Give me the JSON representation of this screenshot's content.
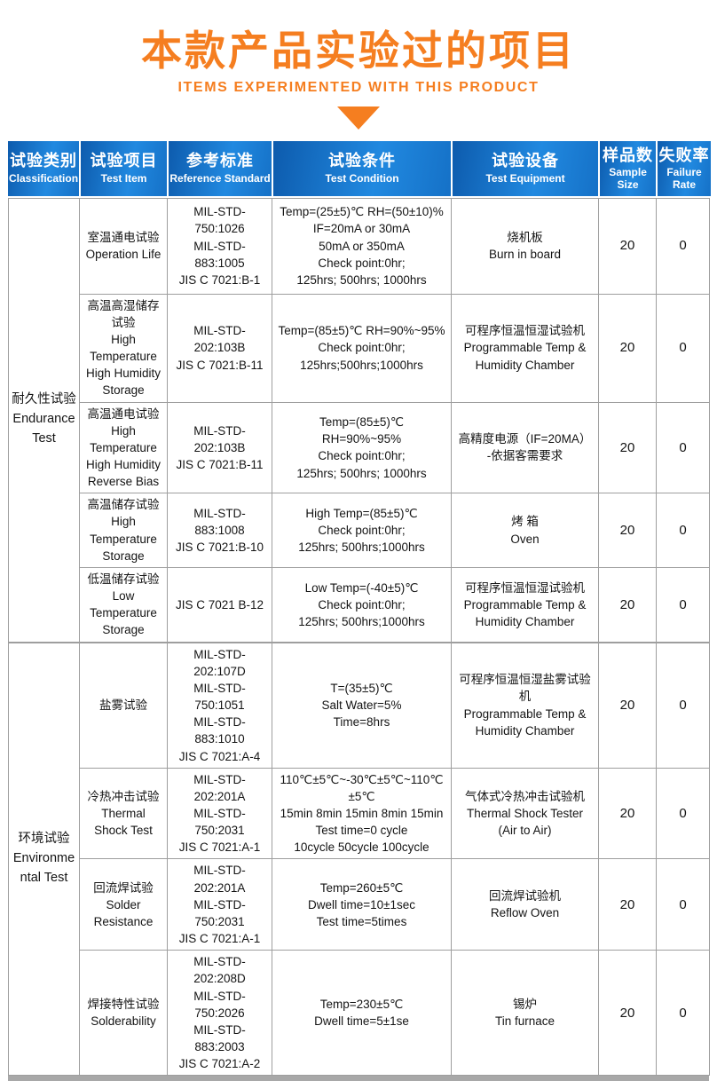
{
  "banner": {
    "title": "本款产品实验过的项目",
    "subtitle": "ITEMS EXPERIMENTED WITH THIS PRODUCT"
  },
  "colors": {
    "accent_orange": "#f57e20",
    "header_blue_dark": "#0d5bad",
    "header_blue_light": "#2189e0",
    "border_gray": "#9e9e9e",
    "bar_gray": "#a8a8a8"
  },
  "table": {
    "headers": [
      {
        "zh": "试验类别",
        "en": "Classification"
      },
      {
        "zh": "试验项目",
        "en": "Test Item"
      },
      {
        "zh": "参考标准",
        "en": "Reference Standard"
      },
      {
        "zh": "试验条件",
        "en": "Test Condition"
      },
      {
        "zh": "试验设备",
        "en": "Test Equipment"
      },
      {
        "zh": "样品数",
        "en": "Sample Size"
      },
      {
        "zh": "失败率",
        "en": "Failure Rate"
      }
    ],
    "groups": [
      {
        "classification": [
          "耐久性试验",
          "Endurance",
          "Test"
        ],
        "rows": [
          {
            "item": [
              "室温通电试验",
              "Operation Life"
            ],
            "standard": [
              "MIL-STD-750:1026",
              "MIL-STD-883:1005",
              "JIS C 7021:B-1"
            ],
            "condition": [
              "Temp=(25±5)℃ RH=(50±10)%",
              "IF=20mA or 30mA",
              "50mA or 350mA",
              "Check point:0hr;",
              "125hrs; 500hrs; 1000hrs"
            ],
            "equipment": [
              "烧机板",
              "Burn in board"
            ],
            "sample_size": "20",
            "failure_rate": "0"
          },
          {
            "item": [
              "高温高湿储存试验",
              "High Temperature",
              "High Humidity",
              "Storage"
            ],
            "standard": [
              "MIL-STD-202:103B",
              "JIS C 7021:B-11"
            ],
            "condition": [
              "Temp=(85±5)℃ RH=90%~95%",
              "Check point:0hr;",
              "125hrs;500hrs;1000hrs"
            ],
            "equipment": [
              "可程序恒温恒湿试验机",
              "Programmable Temp &",
              "Humidity Chamber"
            ],
            "sample_size": "20",
            "failure_rate": "0"
          },
          {
            "item": [
              "高温通电试验",
              "High Temperature",
              "High Humidity",
              "Reverse Bias"
            ],
            "standard": [
              "MIL-STD-202:103B",
              "JIS C 7021:B-11"
            ],
            "condition": [
              "Temp=(85±5)℃",
              "RH=90%~95%",
              "Check point:0hr;",
              "125hrs; 500hrs; 1000hrs"
            ],
            "equipment": [
              "高精度电源（IF=20MA）",
              "-依据客需要求"
            ],
            "sample_size": "20",
            "failure_rate": "0"
          },
          {
            "item": [
              "高温储存试验",
              "High Temperature",
              "Storage"
            ],
            "standard": [
              "MIL-STD-883:1008",
              "JIS C 7021:B-10"
            ],
            "condition": [
              "High Temp=(85±5)℃",
              "Check point:0hr;",
              "125hrs; 500hrs;1000hrs"
            ],
            "equipment": [
              "烤 箱",
              "Oven"
            ],
            "sample_size": "20",
            "failure_rate": "0"
          },
          {
            "item": [
              "低温储存试验",
              "Low Temperature",
              "Storage"
            ],
            "standard": [
              "JIS C 7021 B-12"
            ],
            "condition": [
              "Low Temp=(-40±5)℃",
              "Check point:0hr;",
              "125hrs; 500hrs;1000hrs"
            ],
            "equipment": [
              "可程序恒温恒湿试验机",
              "Programmable Temp &",
              "Humidity Chamber"
            ],
            "sample_size": "20",
            "failure_rate": "0"
          }
        ]
      },
      {
        "classification": [
          "环境试验",
          "Environme",
          "ntal Test"
        ],
        "rows": [
          {
            "item": [
              "盐雾试验"
            ],
            "standard": [
              "MIL-STD-202:107D",
              "MIL-STD-750:1051",
              "MIL-STD-883:1010",
              "JIS C 7021:A-4"
            ],
            "condition": [
              "T=(35±5)℃",
              "Salt Water=5%",
              "Time=8hrs"
            ],
            "equipment": [
              "可程序恒温恒湿盐雾试验机",
              "Programmable Temp &",
              "Humidity Chamber"
            ],
            "sample_size": "20",
            "failure_rate": "0"
          },
          {
            "item": [
              "冷热冲击试验",
              "Thermal",
              "Shock Test"
            ],
            "standard": [
              "MIL-STD-202:201A",
              "MIL-STD-750:2031",
              "JIS C 7021:A-1"
            ],
            "condition": [
              "110℃±5℃~-30℃±5℃~110℃±5℃",
              "15min 8min 15min 8min 15min",
              "Test time=0 cycle",
              "10cycle 50cycle 100cycle"
            ],
            "equipment": [
              "气体式冷热冲击试验机",
              "Thermal Shock Tester",
              "(Air to Air)"
            ],
            "sample_size": "20",
            "failure_rate": "0"
          },
          {
            "item": [
              "回流焊试验",
              "Solder Resistance"
            ],
            "standard": [
              "MIL-STD-202:201A",
              "MIL-STD-750:2031",
              "JIS C 7021:A-1"
            ],
            "condition": [
              "Temp=260±5℃",
              "Dwell time=10±1sec",
              "Test time=5times"
            ],
            "equipment": [
              "回流焊试验机",
              "Reflow  Oven"
            ],
            "sample_size": "20",
            "failure_rate": "0"
          },
          {
            "item": [
              "焊接特性试验",
              "Solderability"
            ],
            "standard": [
              "MIL-STD-202:208D",
              "MIL-STD-750:2026",
              "MIL-STD-883:2003",
              "JIS C 7021:A-2"
            ],
            "condition": [
              "Temp=230±5℃",
              "Dwell time=5±1se"
            ],
            "equipment": [
              "锡炉",
              "Tin furnace"
            ],
            "sample_size": "20",
            "failure_rate": "0"
          }
        ]
      }
    ]
  }
}
